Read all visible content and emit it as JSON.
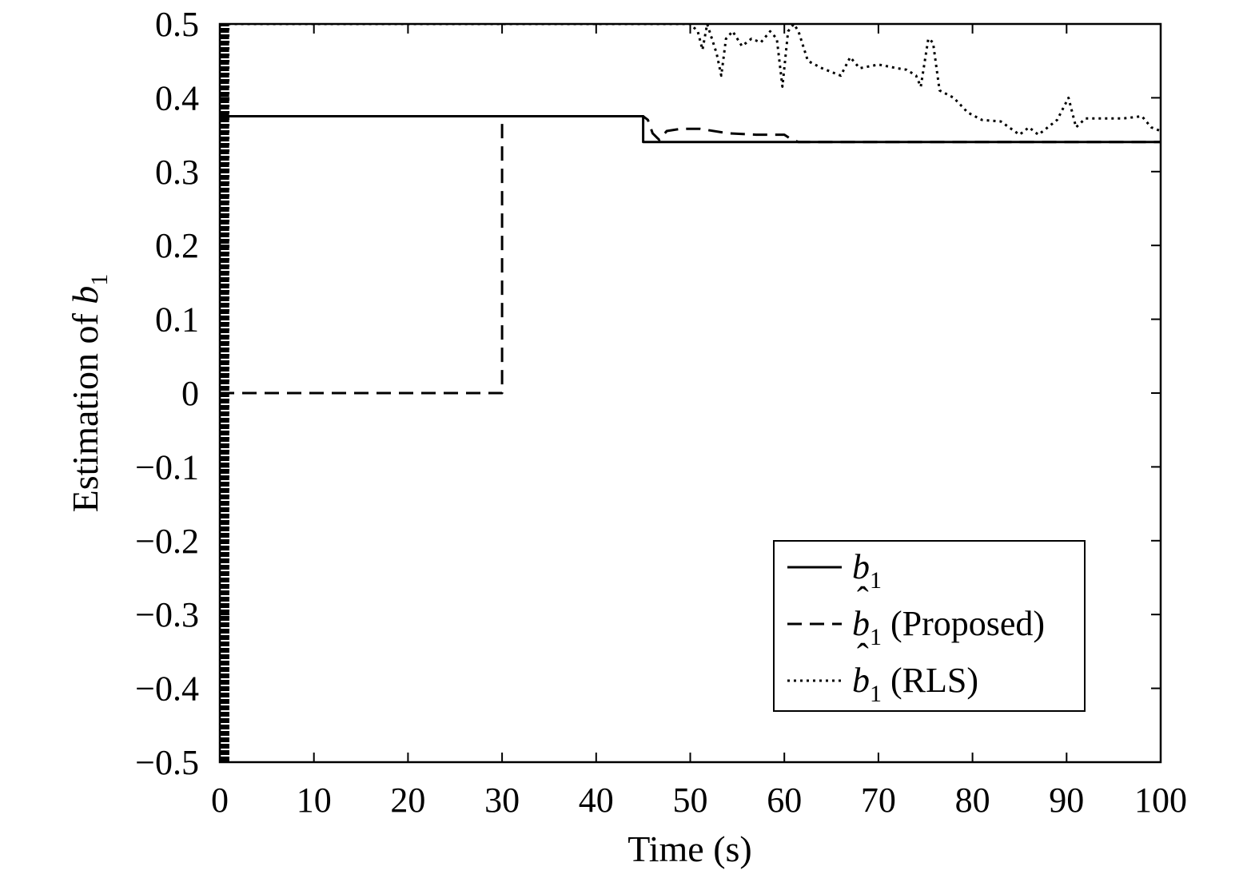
{
  "chart_data": {
    "type": "line",
    "xlabel": "Time (s)",
    "ylabel_prefix": "Estimation of ",
    "ylabel_var": "b",
    "ylabel_sub": "1",
    "xlim": [
      0,
      100
    ],
    "ylim": [
      -0.5,
      0.5
    ],
    "xticks": [
      0,
      10,
      20,
      30,
      40,
      50,
      60,
      70,
      80,
      90,
      100
    ],
    "xtick_labels": [
      "0",
      "10",
      "20",
      "30",
      "40",
      "50",
      "60",
      "70",
      "80",
      "90",
      "100"
    ],
    "yticks": [
      -0.5,
      -0.4,
      -0.3,
      -0.2,
      -0.1,
      0,
      0.1,
      0.2,
      0.3,
      0.4,
      0.5
    ],
    "ytick_labels": [
      "−0.5",
      "−0.4",
      "−0.3",
      "−0.2",
      "−0.1",
      "0",
      "0.1",
      "0.2",
      "0.3",
      "0.4",
      "0.5"
    ],
    "grid": false,
    "legend_position": "bottom-right",
    "series": [
      {
        "name": "b₁",
        "legend_var": "b",
        "legend_hat": false,
        "legend_sub": "1",
        "legend_suffix": "",
        "style": "solid",
        "x": [
          0,
          45,
          45,
          100
        ],
        "y": [
          0.375,
          0.375,
          0.34,
          0.34
        ]
      },
      {
        "name": "b̂₁ (Proposed)",
        "legend_var": "b",
        "legend_hat": true,
        "legend_sub": "1",
        "legend_suffix": " (Proposed)",
        "style": "dashed",
        "x": [
          0,
          30,
          30,
          45,
          45.5,
          46,
          46.7,
          47.5,
          49,
          51,
          54,
          57,
          60,
          60.6,
          61.5,
          65,
          100
        ],
        "y": [
          0,
          0,
          0.375,
          0.375,
          0.37,
          0.352,
          0.343,
          0.355,
          0.358,
          0.358,
          0.352,
          0.35,
          0.35,
          0.345,
          0.34,
          0.34,
          0.34
        ]
      },
      {
        "name": "b̂₁ (RLS)",
        "legend_var": "b",
        "legend_hat": true,
        "legend_sub": "1",
        "legend_suffix": " (RLS)",
        "style": "dotted",
        "early_oscillation": {
          "t_start": 0.1,
          "t_end": 0.9,
          "count": 40,
          "low": -0.5,
          "high": 0.5
        },
        "x": [
          50,
          50.8,
          51.3,
          51.8,
          52.3,
          52.8,
          53.3,
          53.8,
          54.5,
          55.5,
          56.5,
          57.5,
          58.5,
          59.2,
          59.8,
          60.4,
          61,
          61.5,
          62.5,
          64,
          66,
          67,
          68,
          70,
          72,
          73,
          74,
          74.5,
          75.3,
          75.8,
          76.5,
          78,
          79.5,
          81,
          83,
          85,
          86,
          87,
          88,
          89,
          90.2,
          91,
          92,
          94,
          96,
          98,
          99,
          100
        ],
        "y": [
          0.5,
          0.49,
          0.465,
          0.5,
          0.48,
          0.46,
          0.43,
          0.48,
          0.49,
          0.47,
          0.48,
          0.475,
          0.49,
          0.48,
          0.415,
          0.49,
          0.5,
          0.49,
          0.45,
          0.44,
          0.43,
          0.455,
          0.44,
          0.445,
          0.44,
          0.438,
          0.43,
          0.415,
          0.48,
          0.475,
          0.41,
          0.4,
          0.38,
          0.37,
          0.368,
          0.35,
          0.36,
          0.35,
          0.36,
          0.37,
          0.4,
          0.36,
          0.372,
          0.372,
          0.372,
          0.375,
          0.36,
          0.355
        ]
      }
    ]
  }
}
